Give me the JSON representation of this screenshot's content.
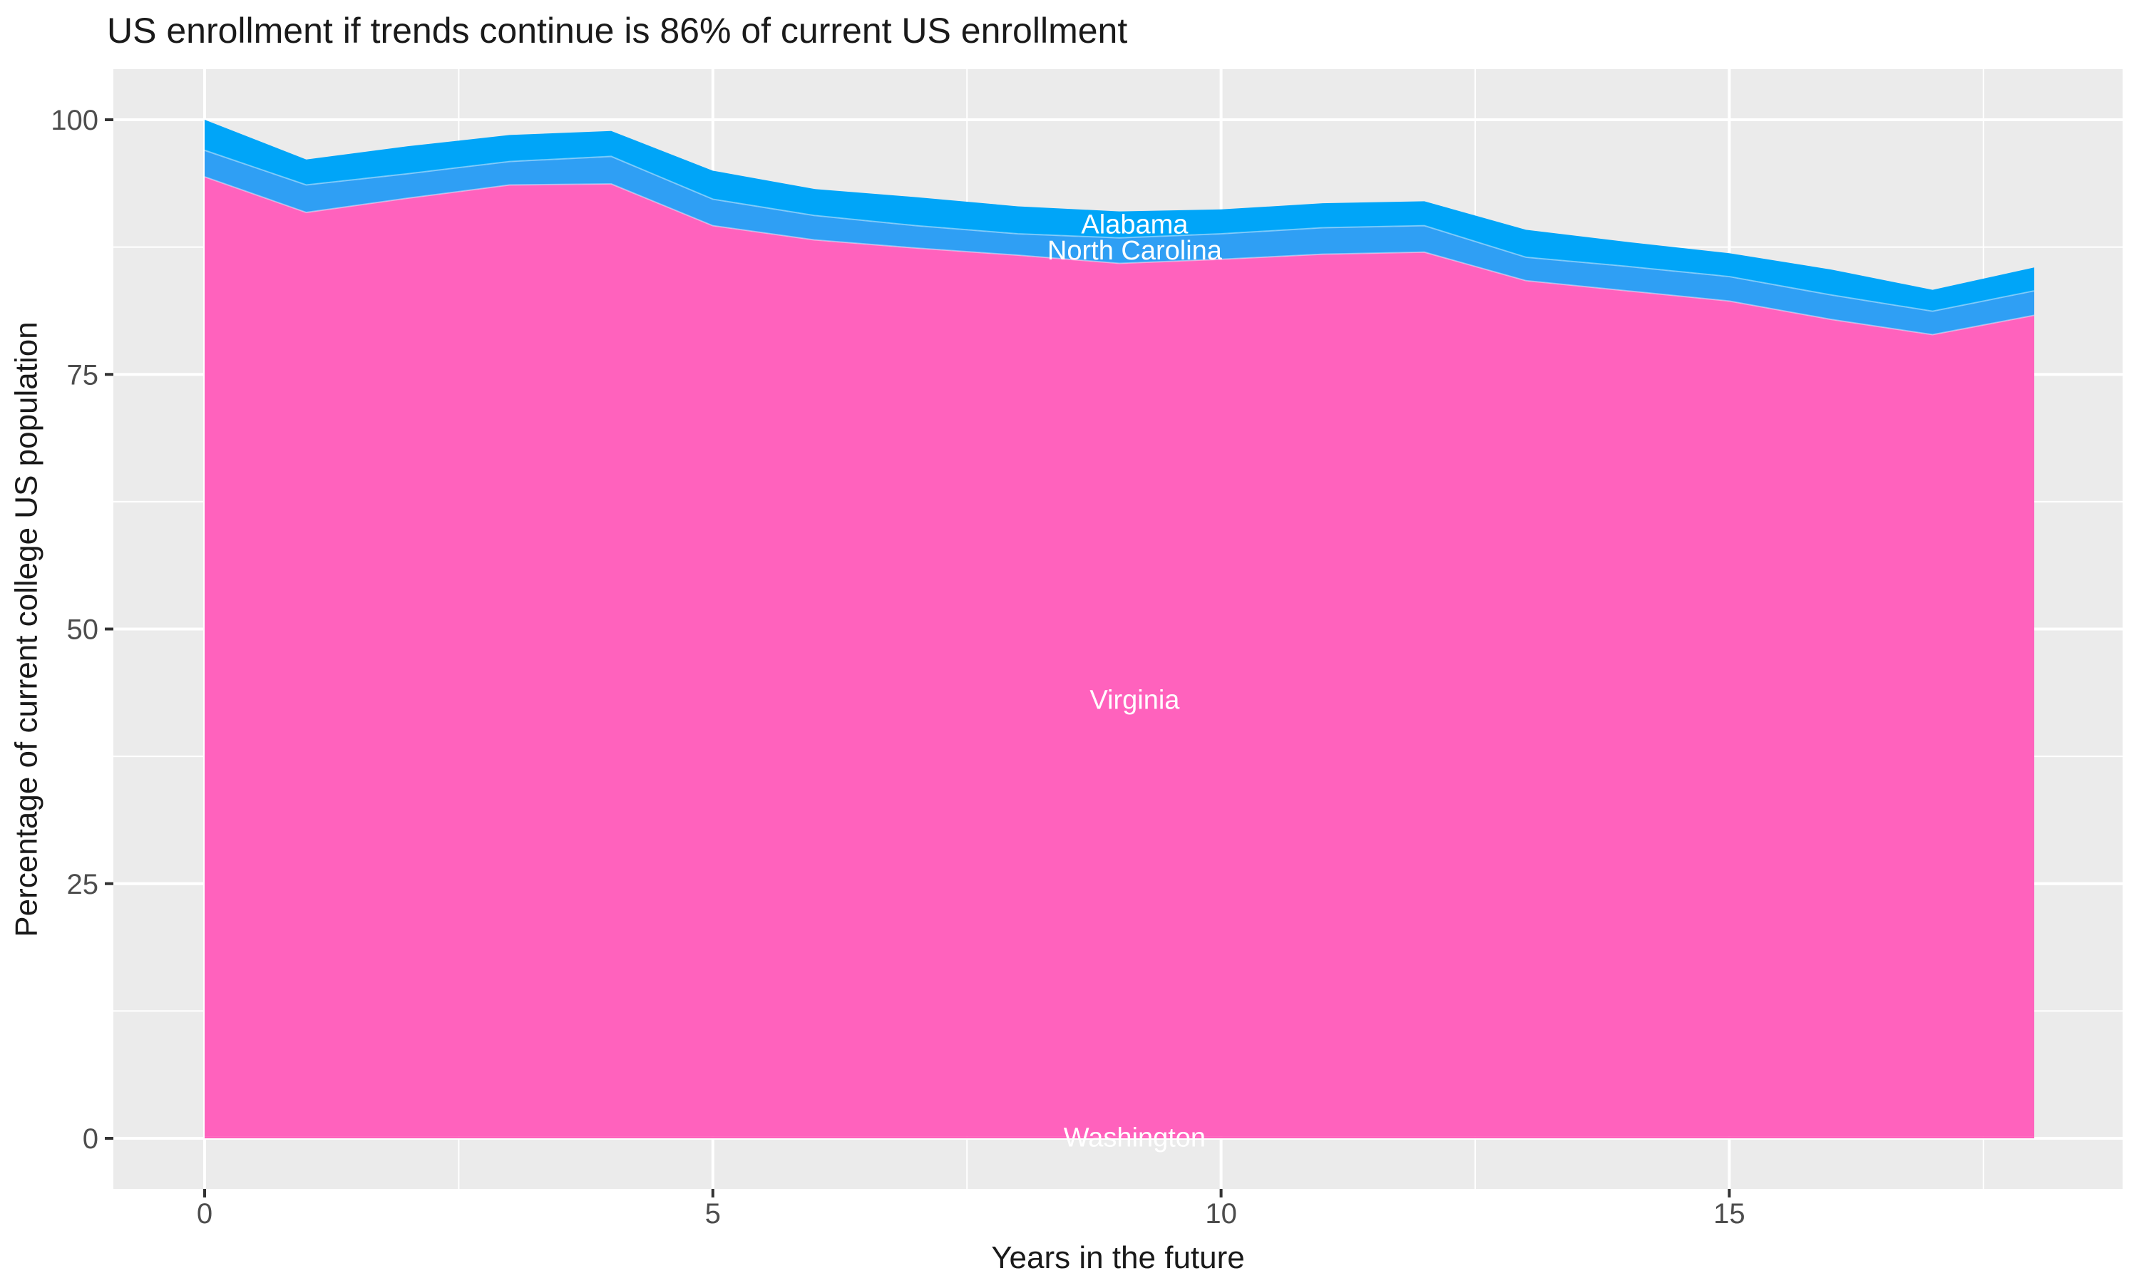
{
  "title": "US enrollment if trends continue is 86% of current US enrollment",
  "chart_data": {
    "type": "area",
    "stacked": true,
    "title": "US enrollment if trends continue is 86% of current US enrollment",
    "xlabel": "Years in the future",
    "ylabel": "Percentage of current college US population",
    "x": [
      0,
      1,
      2,
      3,
      4,
      5,
      6,
      7,
      8,
      9,
      10,
      11,
      12,
      13,
      14,
      15,
      16,
      17,
      18
    ],
    "xlim": [
      -0.9,
      18.9
    ],
    "ylim": [
      -5,
      105
    ],
    "x_ticks": [
      0,
      5,
      10,
      15
    ],
    "y_ticks": [
      0,
      25,
      50,
      75,
      100
    ],
    "x_minor": [
      2.5,
      7.5,
      12.5,
      17.5
    ],
    "y_minor": [
      12.5,
      37.5,
      62.5,
      87.5
    ],
    "grid": true,
    "legend_position": "none",
    "series": [
      {
        "name": "Washington",
        "color": "#FF62BD",
        "values": [
          0.2,
          0.2,
          0.2,
          0.2,
          0.2,
          0.2,
          0.2,
          0.2,
          0.2,
          0.2,
          0.2,
          0.2,
          0.2,
          0.2,
          0.2,
          0.2,
          0.2,
          0.2,
          0.2
        ]
      },
      {
        "name": "Virginia",
        "color": "#FF62BD",
        "values": [
          94.2,
          90.7,
          92.1,
          93.4,
          93.5,
          89.4,
          88.0,
          87.2,
          86.5,
          85.7,
          86.1,
          86.6,
          86.8,
          84.0,
          83.0,
          82.0,
          80.2,
          78.7,
          80.6
        ]
      },
      {
        "name": "North Carolina",
        "color": "#2F9FF4",
        "values": [
          2.6,
          2.7,
          2.4,
          2.3,
          2.7,
          2.6,
          2.4,
          2.2,
          2.1,
          2.5,
          2.5,
          2.6,
          2.6,
          2.3,
          2.4,
          2.4,
          2.4,
          2.3,
          2.4
        ]
      },
      {
        "name": "Alabama",
        "color": "#00A5F8",
        "values": [
          3.0,
          2.5,
          2.7,
          2.6,
          2.5,
          2.8,
          2.6,
          2.8,
          2.7,
          2.6,
          2.4,
          2.4,
          2.4,
          2.7,
          2.4,
          2.3,
          2.5,
          2.1,
          2.3
        ]
      }
    ],
    "area_labels": {
      "year": 9.15,
      "color": "#FFFFFF",
      "entries": [
        "Alabama",
        "North Carolina",
        "Virginia",
        "Washington"
      ]
    }
  },
  "style": {
    "panel_bg": "#EBEBEB",
    "grid_color": "#FFFFFF",
    "axis_text_color": "#4D4D4D",
    "tick_color": "#333333",
    "title_color": "#1A1A1A",
    "band_edge_color": "rgba(255,255,255,0.4)"
  }
}
